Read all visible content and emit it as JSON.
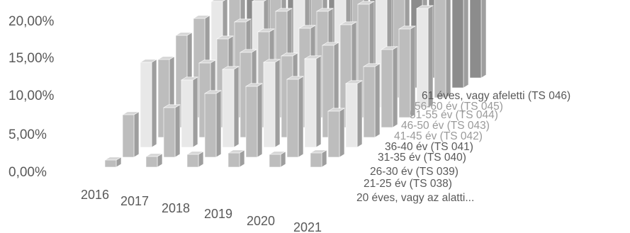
{
  "chart_data": {
    "type": "bar3d",
    "title": "",
    "xlabel": "",
    "ylabel": "",
    "ylim": [
      0,
      0.2
    ],
    "y_ticks": [
      "0,00%",
      "5,00%",
      "10,00%",
      "15,00%",
      "20,00%"
    ],
    "grid": false,
    "legend": "none",
    "categories": [
      "2016",
      "2017",
      "2018",
      "2019",
      "2020",
      "2021"
    ],
    "series": [
      {
        "name": "20 éves, vagy az alatti...",
        "values": [
          0.01,
          0.015,
          0.018,
          0.02,
          0.018,
          0.02
        ]
      },
      {
        "name": "21-25 év (TS 038)",
        "values": [
          0.06,
          0.07,
          0.09,
          0.1,
          0.11,
          0.065
        ]
      },
      {
        "name": "26-30 év (TS 039)",
        "values": [
          0.12,
          0.095,
          0.11,
          0.12,
          0.125,
          0.09
        ]
      },
      {
        "name": "31-35 év (TS 040)",
        "values": [
          0.11,
          0.105,
          0.12,
          0.115,
          0.13,
          0.1
        ]
      },
      {
        "name": "36-40 év (TS 041)",
        "values": [
          0.13,
          0.125,
          0.135,
          0.14,
          0.145,
          0.11
        ]
      },
      {
        "name": "41-45 év (TS 042)",
        "values": [
          0.14,
          0.135,
          0.15,
          0.15,
          0.16,
          0.125
        ]
      },
      {
        "name": "46-50 év (TS 043)",
        "values": [
          0.15,
          0.15,
          0.16,
          0.165,
          0.17,
          0.14
        ]
      },
      {
        "name": "51-55 év (TS 044)",
        "values": [
          0.16,
          0.155,
          0.17,
          0.175,
          0.18,
          0.145
        ]
      },
      {
        "name": "56-60 év (TS 045)",
        "values": [
          0.17,
          0.165,
          0.175,
          0.18,
          0.185,
          0.16
        ]
      },
      {
        "name": "61 éves, vagy afeletti (TS 046)",
        "values": [
          0.18,
          0.175,
          0.185,
          0.19,
          0.195,
          0.185
        ]
      }
    ]
  },
  "colors": {
    "front_face": "#bdbdbd",
    "side_face": "#9e9e9e",
    "top_face": "#d6d6d6",
    "light_front": "#e8e8e8",
    "dark_front": "#8c8c8c",
    "tick_text": "#595959"
  }
}
